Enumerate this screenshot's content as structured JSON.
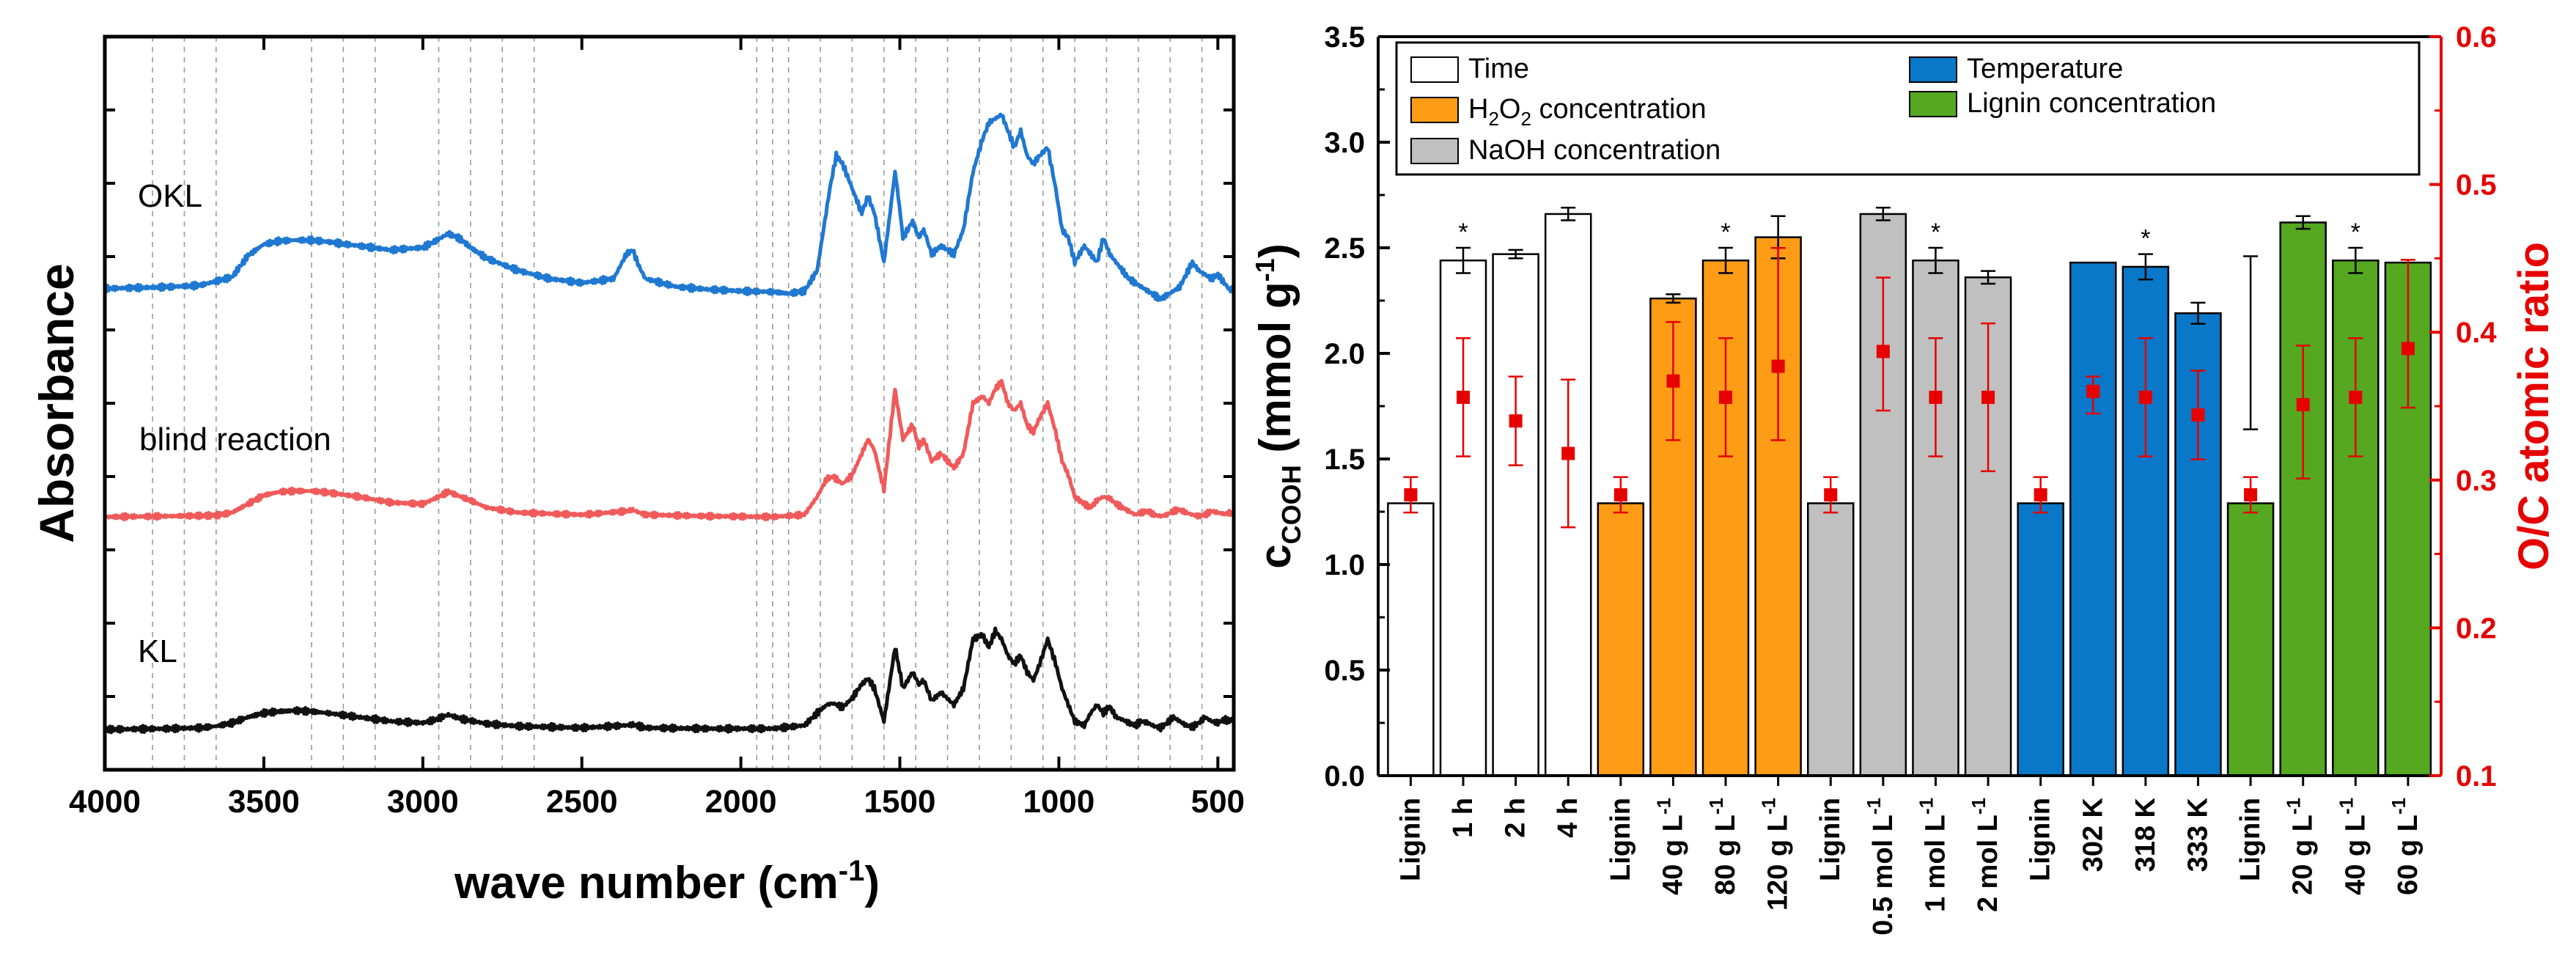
{
  "chart_data": [
    {
      "type": "line",
      "title": "",
      "xlabel": "wave number (cm",
      "xlabel_sup": "-1",
      "xlabel_close": ")",
      "ylabel": "Absorbance",
      "xlim": [
        4000,
        450
      ],
      "x_ticks": [
        4000,
        3500,
        3000,
        2500,
        2000,
        1500,
        1000,
        500
      ],
      "grid_x": [
        3850,
        3750,
        3650,
        3350,
        3250,
        3150,
        2950,
        2850,
        2750,
        2650,
        1950,
        1900,
        1850,
        1750,
        1650,
        1550,
        1450,
        1350,
        1250,
        1150,
        1050,
        950,
        850,
        750,
        650,
        550
      ],
      "series": [
        {
          "name": "OKL",
          "color": "#1f78d1",
          "x": [
            4000,
            3800,
            3700,
            3600,
            3550,
            3500,
            3450,
            3400,
            3350,
            3300,
            3200,
            3100,
            3000,
            2960,
            2920,
            2880,
            2850,
            2800,
            2700,
            2600,
            2500,
            2400,
            2360,
            2340,
            2320,
            2300,
            2200,
            2100,
            2000,
            1900,
            1850,
            1800,
            1760,
            1720,
            1700,
            1680,
            1650,
            1620,
            1600,
            1580,
            1550,
            1515,
            1505,
            1490,
            1460,
            1440,
            1425,
            1400,
            1370,
            1330,
            1300,
            1270,
            1240,
            1220,
            1200,
            1180,
            1160,
            1140,
            1120,
            1100,
            1080,
            1060,
            1035,
            1010,
            990,
            970,
            950,
            920,
            900,
            880,
            860,
            840,
            820,
            800,
            780,
            760,
            740,
            720,
            700,
            680,
            660,
            640,
            620,
            600,
            580,
            560,
            540,
            520,
            500,
            480,
            460,
            450
          ],
          "y": [
            0.28,
            0.3,
            0.32,
            0.42,
            0.68,
            0.82,
            0.86,
            0.87,
            0.87,
            0.85,
            0.8,
            0.75,
            0.78,
            0.86,
            0.95,
            0.88,
            0.78,
            0.65,
            0.5,
            0.4,
            0.35,
            0.4,
            0.7,
            0.75,
            0.55,
            0.4,
            0.3,
            0.27,
            0.25,
            0.24,
            0.22,
            0.25,
            0.5,
            1.5,
            1.9,
            1.8,
            1.5,
            1.2,
            1.4,
            1.2,
            0.6,
            1.7,
            1.4,
            0.9,
            1.1,
            0.9,
            1.0,
            0.7,
            0.8,
            0.7,
            1.0,
            1.7,
            2.1,
            2.3,
            2.35,
            2.4,
            2.2,
            2.0,
            2.2,
            1.9,
            1.8,
            1.9,
            2.0,
            1.5,
            1.0,
            0.9,
            0.6,
            0.8,
            0.7,
            0.6,
            0.9,
            0.7,
            0.6,
            0.5,
            0.4,
            0.35,
            0.3,
            0.25,
            0.2,
            0.15,
            0.2,
            0.25,
            0.3,
            0.45,
            0.6,
            0.5,
            0.45,
            0.4,
            0.45,
            0.35,
            0.25,
            0.3
          ]
        },
        {
          "name": "blind reaction",
          "color": "#f05a5a",
          "x": [
            4000,
            3800,
            3650,
            3600,
            3550,
            3500,
            3450,
            3400,
            3350,
            3300,
            3200,
            3100,
            3000,
            2960,
            2920,
            2880,
            2850,
            2800,
            2700,
            2500,
            2360,
            2340,
            2320,
            2300,
            2100,
            1900,
            1800,
            1760,
            1730,
            1710,
            1680,
            1650,
            1620,
            1600,
            1580,
            1550,
            1515,
            1505,
            1490,
            1460,
            1440,
            1425,
            1400,
            1370,
            1330,
            1300,
            1270,
            1240,
            1220,
            1200,
            1180,
            1160,
            1140,
            1120,
            1100,
            1080,
            1060,
            1035,
            1010,
            990,
            970,
            950,
            920,
            900,
            880,
            860,
            840,
            820,
            800,
            780,
            760,
            740,
            720,
            700,
            680,
            660,
            640,
            620,
            600,
            580,
            560,
            540,
            520,
            500,
            480,
            460,
            450
          ],
          "y": [
            0.02,
            0.03,
            0.04,
            0.08,
            0.2,
            0.32,
            0.37,
            0.38,
            0.38,
            0.36,
            0.3,
            0.22,
            0.2,
            0.28,
            0.37,
            0.3,
            0.25,
            0.15,
            0.08,
            0.05,
            0.1,
            0.12,
            0.08,
            0.05,
            0.03,
            0.02,
            0.05,
            0.3,
            0.55,
            0.58,
            0.48,
            0.6,
            0.9,
            1.1,
            0.95,
            0.4,
            1.8,
            1.5,
            1.1,
            1.3,
            1.0,
            1.1,
            0.8,
            0.9,
            0.7,
            0.9,
            1.6,
            1.7,
            1.6,
            1.8,
            1.9,
            1.6,
            1.5,
            1.6,
            1.3,
            1.2,
            1.4,
            1.6,
            1.2,
            0.8,
            0.6,
            0.3,
            0.2,
            0.15,
            0.25,
            0.3,
            0.28,
            0.2,
            0.15,
            0.1,
            0.05,
            0.08,
            0.1,
            0.05,
            0.03,
            0.05,
            0.1,
            0.12,
            0.08,
            0.05,
            0.03,
            0.05,
            0.1,
            0.08,
            0.06,
            0.08,
            0.06
          ]
        },
        {
          "name": "KL",
          "color": "#111111",
          "x": [
            4000,
            3800,
            3700,
            3650,
            3600,
            3550,
            3500,
            3450,
            3400,
            3350,
            3300,
            3200,
            3100,
            3000,
            2960,
            2920,
            2880,
            2840,
            2800,
            2700,
            2500,
            2360,
            2340,
            2320,
            2300,
            2100,
            1900,
            1800,
            1760,
            1730,
            1710,
            1680,
            1650,
            1620,
            1600,
            1580,
            1550,
            1515,
            1505,
            1490,
            1460,
            1440,
            1425,
            1400,
            1370,
            1330,
            1300,
            1270,
            1240,
            1220,
            1200,
            1180,
            1160,
            1140,
            1120,
            1100,
            1080,
            1060,
            1035,
            1010,
            990,
            970,
            950,
            920,
            900,
            880,
            860,
            840,
            820,
            800,
            780,
            760,
            740,
            720,
            700,
            680,
            660,
            640,
            620,
            600,
            580,
            560,
            540,
            520,
            500,
            480,
            460,
            450
          ],
          "y": [
            0.0,
            0.01,
            0.02,
            0.04,
            0.08,
            0.15,
            0.2,
            0.22,
            0.23,
            0.22,
            0.2,
            0.15,
            0.1,
            0.08,
            0.12,
            0.18,
            0.13,
            0.1,
            0.07,
            0.04,
            0.02,
            0.05,
            0.06,
            0.04,
            0.02,
            0.01,
            0.01,
            0.05,
            0.2,
            0.3,
            0.32,
            0.27,
            0.38,
            0.55,
            0.62,
            0.5,
            0.1,
            1.0,
            0.8,
            0.5,
            0.7,
            0.55,
            0.6,
            0.35,
            0.45,
            0.3,
            0.5,
            1.1,
            1.15,
            1.0,
            1.2,
            1.1,
            0.9,
            0.8,
            0.9,
            0.7,
            0.6,
            0.8,
            1.1,
            0.8,
            0.5,
            0.3,
            0.1,
            0.05,
            0.2,
            0.3,
            0.2,
            0.28,
            0.15,
            0.12,
            0.08,
            0.05,
            0.1,
            0.08,
            0.04,
            0.02,
            0.08,
            0.15,
            0.1,
            0.05,
            0.03,
            0.08,
            0.15,
            0.1,
            0.08,
            0.12,
            0.1,
            0.15
          ]
        }
      ],
      "labels": [
        "OKL",
        "blind reaction",
        "KL"
      ]
    },
    {
      "type": "bar",
      "title": "",
      "ylabel_main": "c",
      "ylabel_sub": "COOH",
      "ylabel_unit": " (mmol g",
      "ylabel_unit_sup": "-1",
      "ylabel_close": ")",
      "ylabel_right": "O/C atomic ratio",
      "ylim": [
        0.0,
        3.5
      ],
      "ylim_right": [
        0.1,
        0.6
      ],
      "y_ticks": [
        0.0,
        0.5,
        1.0,
        1.5,
        2.0,
        2.5,
        3.0,
        3.5
      ],
      "y_tick_labels": [
        "0.0",
        "0.5",
        "1.0",
        "1.5",
        "2.0",
        "2.5",
        "3.0",
        "3.5"
      ],
      "y_ticks_right": [
        0.1,
        0.2,
        0.3,
        0.4,
        0.5,
        0.6
      ],
      "y_tick_labels_right": [
        "0.1",
        "0.2",
        "0.3",
        "0.4",
        "0.5",
        "0.6"
      ],
      "categories": [
        "Lignin",
        "1 h",
        "2 h",
        "4 h",
        "Lignin",
        "40 g L",
        "80 g L",
        "120 g L",
        "Lignin",
        "0.5 mol L",
        "1 mol L",
        "2 mol L",
        "Lignin",
        "302 K",
        "318 K",
        "333 K",
        "Lignin",
        "20 g L",
        "40 g L",
        "60 g L"
      ],
      "category_superscripts": [
        "",
        "",
        "",
        "",
        "",
        "-1",
        "-1",
        "-1",
        "",
        "-1",
        "-1",
        "-1",
        "",
        "",
        "",
        "",
        "",
        "-1",
        "-1",
        "-1"
      ],
      "groups": [
        "Time",
        "Time",
        "Time",
        "Time",
        "H2O2",
        "H2O2",
        "H2O2",
        "H2O2",
        "NaOH",
        "NaOH",
        "NaOH",
        "NaOH",
        "Temperature",
        "Temperature",
        "Temperature",
        "Temperature",
        "Lignin conc",
        "Lignin conc",
        "Lignin conc",
        "Lignin conc"
      ],
      "values": [
        1.29,
        2.44,
        2.47,
        2.66,
        1.29,
        2.26,
        2.44,
        2.55,
        1.29,
        2.66,
        2.44,
        2.36,
        1.29,
        2.43,
        2.41,
        2.19,
        1.29,
        2.62,
        2.44,
        2.43
      ],
      "errors": [
        0.0,
        0.06,
        0.02,
        0.03,
        0.0,
        0.02,
        0.06,
        0.1,
        0.0,
        0.03,
        0.06,
        0.03,
        0.0,
        0.0,
        0.06,
        0.05,
        0.0,
        0.03,
        0.06,
        0.0
      ],
      "significance": [
        false,
        true,
        false,
        false,
        false,
        false,
        true,
        false,
        false,
        false,
        true,
        false,
        false,
        false,
        true,
        false,
        false,
        false,
        true,
        false
      ],
      "oc_ratio": [
        0.29,
        0.356,
        0.34,
        0.318,
        0.29,
        0.367,
        0.356,
        0.377,
        0.29,
        0.387,
        0.356,
        0.356,
        0.29,
        0.36,
        0.356,
        0.344,
        0.29,
        0.351,
        0.356,
        0.389
      ],
      "oc_error_low": [
        0.012,
        0.04,
        0.03,
        0.05,
        0.012,
        0.04,
        0.04,
        0.05,
        0.012,
        0.04,
        0.04,
        0.05,
        0.012,
        0.015,
        0.04,
        0.03,
        0.012,
        0.05,
        0.04,
        0.04
      ],
      "oc_error_high": [
        0.012,
        0.04,
        0.03,
        0.05,
        0.012,
        0.04,
        0.04,
        0.08,
        0.012,
        0.05,
        0.04,
        0.05,
        0.012,
        0.01,
        0.04,
        0.03,
        0.012,
        0.04,
        0.04,
        0.06
      ],
      "extra_errorbar": {
        "category_index": 16,
        "value": 2.05,
        "low": 1.64,
        "high": 2.46
      },
      "legend": [
        {
          "label": "Time",
          "color": "#ffffff"
        },
        {
          "label": "H",
          "sub1": "2",
          "mid": "O",
          "sub2": "2",
          "rest": " concentration",
          "color": "#ff9c16"
        },
        {
          "label": "NaOH concentration",
          "color": "#c0c0c0"
        },
        {
          "label": "Temperature",
          "color": "#0a78c8"
        },
        {
          "label": "Lignin concentration",
          "color": "#55a820"
        }
      ],
      "colors": {
        "Time": "#ffffff",
        "H2O2": "#ff9c16",
        "NaOH": "#c0c0c0",
        "Temperature": "#0a78c8",
        "Lignin conc": "#55a820",
        "oc_marker": "#e60000",
        "right_axis": "#e60000"
      }
    }
  ]
}
